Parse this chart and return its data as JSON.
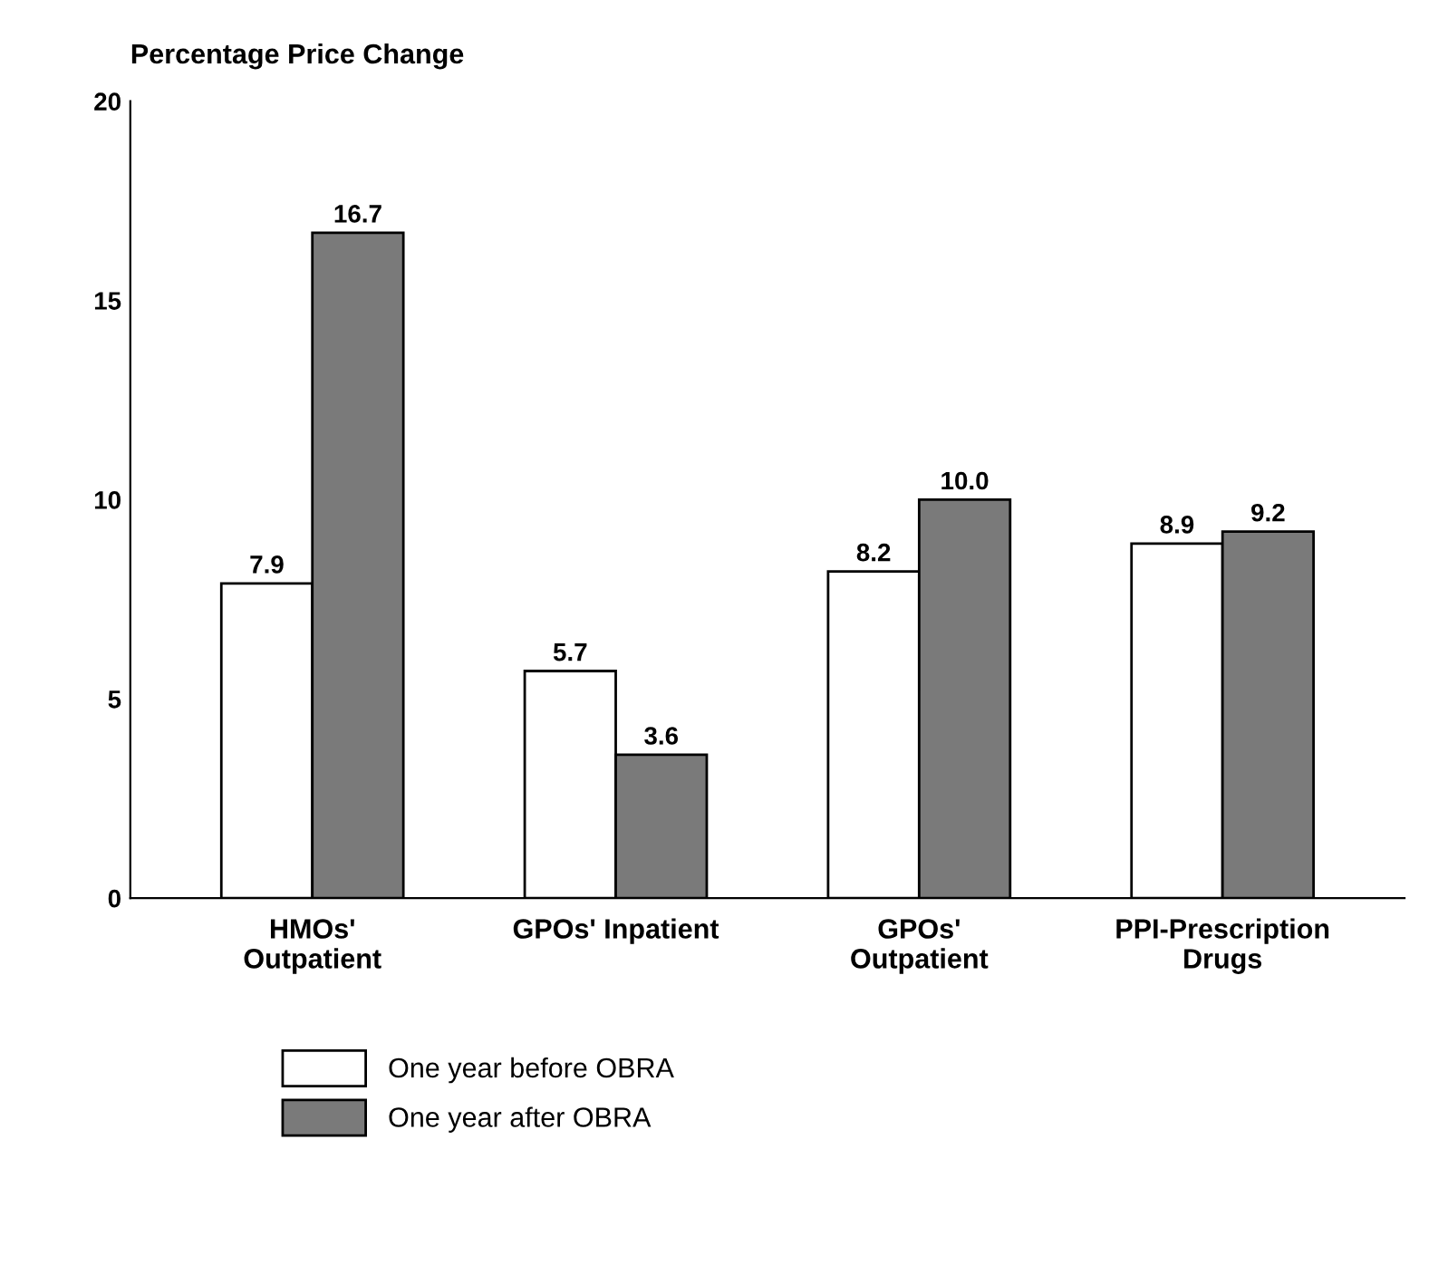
{
  "chart_data": {
    "type": "bar",
    "ylabel": "Percentage Price Change",
    "categories": [
      "HMOs'\nOutpatient",
      "GPOs' Inpatient",
      "GPOs'\nOutpatient",
      "PPI-Prescription\nDrugs"
    ],
    "series": [
      {
        "name": "One year before OBRA",
        "color": "#ffffff",
        "values": [
          7.9,
          5.7,
          8.2,
          8.9
        ],
        "value_labels": [
          "7.9",
          "5.7",
          "8.2",
          "8.9"
        ]
      },
      {
        "name": "One year after OBRA",
        "color": "#7a7a7a",
        "values": [
          16.7,
          3.6,
          10.0,
          9.2
        ],
        "value_labels": [
          "16.7",
          "3.6",
          "10.0",
          "9.2"
        ]
      }
    ],
    "ylim": [
      0,
      20
    ],
    "yticks": [
      0,
      5,
      10,
      15,
      20
    ],
    "grid": false,
    "legend": "bottom left"
  }
}
